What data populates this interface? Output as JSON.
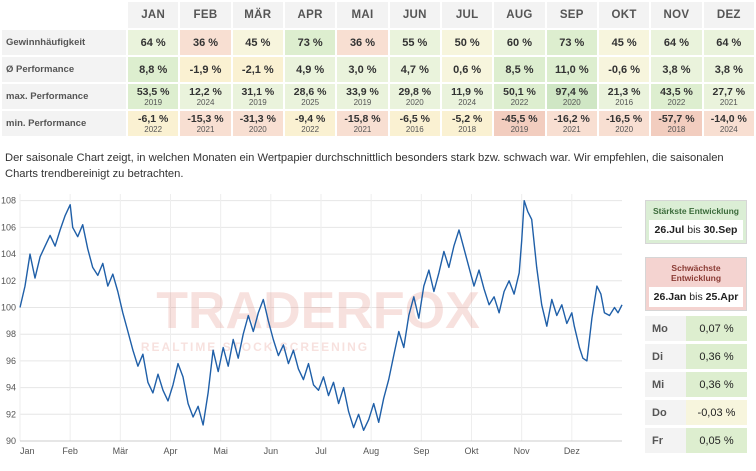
{
  "months": [
    "JAN",
    "FEB",
    "MÄR",
    "APR",
    "MAI",
    "JUN",
    "JUL",
    "AUG",
    "SEP",
    "OKT",
    "NOV",
    "DEZ"
  ],
  "rows": {
    "win": {
      "label": "Gewinnhäufigkeit",
      "values": [
        "64 %",
        "36 %",
        "45 %",
        "73 %",
        "36 %",
        "55 %",
        "50 %",
        "60 %",
        "73 %",
        "45 %",
        "64 %",
        "64 %"
      ],
      "colors": [
        "#eaf3dc",
        "#f8dfd2",
        "#f7f5dd",
        "#ddeecf",
        "#f8dfd2",
        "#eaf3dc",
        "#f7f5dd",
        "#eaf3dc",
        "#ddeecf",
        "#f7f5dd",
        "#eaf3dc",
        "#eaf3dc"
      ]
    },
    "avg": {
      "label": "Ø Performance",
      "values": [
        "8,8 %",
        "-1,9 %",
        "-2,1 %",
        "4,9 %",
        "3,0 %",
        "4,7 %",
        "0,6 %",
        "8,5 %",
        "11,0 %",
        "-0,6 %",
        "3,8 %",
        "3,8 %"
      ],
      "colors": [
        "#ddeecf",
        "#faf1d2",
        "#faf1d2",
        "#eaf3dc",
        "#eaf3dc",
        "#eaf3dc",
        "#f7f5dd",
        "#ddeecf",
        "#ddeecf",
        "#f7f5dd",
        "#eaf3dc",
        "#eaf3dc"
      ]
    },
    "max": {
      "label": "max. Performance",
      "values": [
        "53,5 %",
        "12,2 %",
        "31,1 %",
        "28,6 %",
        "33,9 %",
        "29,8 %",
        "11,9 %",
        "50,1 %",
        "97,4 %",
        "21,3 %",
        "43,5 %",
        "27,7 %"
      ],
      "years": [
        "2019",
        "2024",
        "2019",
        "2025",
        "2019",
        "2020",
        "2024",
        "2022",
        "2020",
        "2016",
        "2022",
        "2021"
      ],
      "colors": [
        "#ddeecf",
        "#eaf3dc",
        "#eaf3dc",
        "#eaf3dc",
        "#eaf3dc",
        "#eaf3dc",
        "#eaf3dc",
        "#ddeecf",
        "#cfe6c4",
        "#eaf3dc",
        "#ddeecf",
        "#eaf3dc"
      ]
    },
    "min": {
      "label": "min. Performance",
      "values": [
        "-6,1 %",
        "-15,3 %",
        "-31,3 %",
        "-9,4 %",
        "-15,8 %",
        "-6,5 %",
        "-5,2 %",
        "-45,5 %",
        "-16,2 %",
        "-16,5 %",
        "-57,7 %",
        "-14,0 %"
      ],
      "years": [
        "2022",
        "2021",
        "2020",
        "2022",
        "2021",
        "2016",
        "2018",
        "2019",
        "2021",
        "2020",
        "2018",
        "2024"
      ],
      "colors": [
        "#faf1d2",
        "#f8dfd2",
        "#f8dfd2",
        "#faf1d2",
        "#f8dfd2",
        "#faf1d2",
        "#faf1d2",
        "#f2cdbf",
        "#f8dfd2",
        "#f8dfd2",
        "#f2cdbf",
        "#f8dfd2"
      ]
    }
  },
  "description": "Der saisonale Chart zeigt, in welchen Monaten ein Wertpapier durchschnittlich besonders stark bzw. schwach war. Wir empfehlen, die saisonalen Charts trendbereinigt zu betrachten.",
  "best": {
    "title": "Stärkste Entwicklung",
    "from": "26.Jul",
    "sep": "bis",
    "to": "30.Sep"
  },
  "worst": {
    "title": "Schwächste Entwicklung",
    "from": "26.Jan",
    "sep": "bis",
    "to": "25.Apr"
  },
  "weekdays": [
    {
      "day": "Mo",
      "value": "0,07 %"
    },
    {
      "day": "Di",
      "value": "0,36 %"
    },
    {
      "day": "Mi",
      "value": "0,36 %"
    },
    {
      "day": "Do",
      "value": "-0,03 %"
    },
    {
      "day": "Fr",
      "value": "0,05 %"
    }
  ],
  "watermark": {
    "brand": "TRADERFOX",
    "tagline": "REALTIME STOCK SCREENING"
  },
  "chart_data": {
    "type": "line",
    "xlabel": "",
    "ylabel": "",
    "x_ticks": [
      "Jan",
      "Feb",
      "Mär",
      "Apr",
      "Mai",
      "Jun",
      "Jul",
      "Aug",
      "Sep",
      "Okt",
      "Nov",
      "Dez"
    ],
    "ylim": [
      90,
      108.5
    ],
    "y_ticks": [
      90,
      92,
      94,
      96,
      98,
      100,
      102,
      104,
      106,
      108
    ],
    "grid": true,
    "line_color": "#1f5fa8",
    "series": [
      {
        "values": [
          {
            "x": 0.0,
            "y": 100.0
          },
          {
            "x": 0.1,
            "y": 101.6
          },
          {
            "x": 0.2,
            "y": 104.0
          },
          {
            "x": 0.3,
            "y": 102.2
          },
          {
            "x": 0.4,
            "y": 103.8
          },
          {
            "x": 0.5,
            "y": 104.6
          },
          {
            "x": 0.6,
            "y": 105.4
          },
          {
            "x": 0.7,
            "y": 104.6
          },
          {
            "x": 0.8,
            "y": 105.8
          },
          {
            "x": 0.9,
            "y": 106.9
          },
          {
            "x": 1.0,
            "y": 107.7
          },
          {
            "x": 1.05,
            "y": 106.0
          },
          {
            "x": 1.15,
            "y": 105.3
          },
          {
            "x": 1.25,
            "y": 106.2
          },
          {
            "x": 1.35,
            "y": 104.4
          },
          {
            "x": 1.45,
            "y": 103.0
          },
          {
            "x": 1.55,
            "y": 102.4
          },
          {
            "x": 1.65,
            "y": 103.3
          },
          {
            "x": 1.75,
            "y": 101.6
          },
          {
            "x": 1.85,
            "y": 102.5
          },
          {
            "x": 1.95,
            "y": 101.2
          },
          {
            "x": 2.05,
            "y": 99.6
          },
          {
            "x": 2.15,
            "y": 98.2
          },
          {
            "x": 2.25,
            "y": 96.8
          },
          {
            "x": 2.35,
            "y": 95.6
          },
          {
            "x": 2.45,
            "y": 96.5
          },
          {
            "x": 2.55,
            "y": 94.4
          },
          {
            "x": 2.65,
            "y": 93.6
          },
          {
            "x": 2.75,
            "y": 95.0
          },
          {
            "x": 2.85,
            "y": 93.8
          },
          {
            "x": 2.95,
            "y": 93.0
          },
          {
            "x": 3.05,
            "y": 94.2
          },
          {
            "x": 3.15,
            "y": 95.8
          },
          {
            "x": 3.25,
            "y": 94.8
          },
          {
            "x": 3.35,
            "y": 92.8
          },
          {
            "x": 3.45,
            "y": 91.8
          },
          {
            "x": 3.55,
            "y": 92.6
          },
          {
            "x": 3.65,
            "y": 91.2
          },
          {
            "x": 3.75,
            "y": 93.6
          },
          {
            "x": 3.85,
            "y": 96.8
          },
          {
            "x": 3.95,
            "y": 95.2
          },
          {
            "x": 4.05,
            "y": 97.0
          },
          {
            "x": 4.15,
            "y": 95.6
          },
          {
            "x": 4.25,
            "y": 97.6
          },
          {
            "x": 4.35,
            "y": 96.2
          },
          {
            "x": 4.45,
            "y": 98.0
          },
          {
            "x": 4.55,
            "y": 99.4
          },
          {
            "x": 4.65,
            "y": 98.2
          },
          {
            "x": 4.75,
            "y": 99.6
          },
          {
            "x": 4.85,
            "y": 100.6
          },
          {
            "x": 4.95,
            "y": 99.0
          },
          {
            "x": 5.05,
            "y": 97.6
          },
          {
            "x": 5.15,
            "y": 96.4
          },
          {
            "x": 5.25,
            "y": 97.2
          },
          {
            "x": 5.35,
            "y": 95.8
          },
          {
            "x": 5.45,
            "y": 96.8
          },
          {
            "x": 5.55,
            "y": 95.4
          },
          {
            "x": 5.65,
            "y": 94.6
          },
          {
            "x": 5.75,
            "y": 95.8
          },
          {
            "x": 5.85,
            "y": 94.2
          },
          {
            "x": 5.95,
            "y": 93.8
          },
          {
            "x": 6.05,
            "y": 94.8
          },
          {
            "x": 6.15,
            "y": 93.4
          },
          {
            "x": 6.25,
            "y": 94.4
          },
          {
            "x": 6.35,
            "y": 92.8
          },
          {
            "x": 6.45,
            "y": 94.0
          },
          {
            "x": 6.55,
            "y": 92.2
          },
          {
            "x": 6.65,
            "y": 91.0
          },
          {
            "x": 6.75,
            "y": 92.0
          },
          {
            "x": 6.85,
            "y": 90.8
          },
          {
            "x": 6.95,
            "y": 91.6
          },
          {
            "x": 7.05,
            "y": 92.8
          },
          {
            "x": 7.15,
            "y": 91.4
          },
          {
            "x": 7.25,
            "y": 93.2
          },
          {
            "x": 7.35,
            "y": 94.6
          },
          {
            "x": 7.45,
            "y": 96.4
          },
          {
            "x": 7.55,
            "y": 98.2
          },
          {
            "x": 7.65,
            "y": 97.0
          },
          {
            "x": 7.75,
            "y": 99.4
          },
          {
            "x": 7.85,
            "y": 100.8
          },
          {
            "x": 7.95,
            "y": 99.2
          },
          {
            "x": 8.05,
            "y": 101.6
          },
          {
            "x": 8.15,
            "y": 102.8
          },
          {
            "x": 8.25,
            "y": 101.2
          },
          {
            "x": 8.35,
            "y": 102.6
          },
          {
            "x": 8.45,
            "y": 104.2
          },
          {
            "x": 8.55,
            "y": 103.0
          },
          {
            "x": 8.65,
            "y": 104.6
          },
          {
            "x": 8.75,
            "y": 105.8
          },
          {
            "x": 8.85,
            "y": 104.4
          },
          {
            "x": 8.95,
            "y": 103.0
          },
          {
            "x": 9.05,
            "y": 101.6
          },
          {
            "x": 9.15,
            "y": 102.8
          },
          {
            "x": 9.25,
            "y": 101.4
          },
          {
            "x": 9.35,
            "y": 100.2
          },
          {
            "x": 9.45,
            "y": 100.8
          },
          {
            "x": 9.55,
            "y": 99.6
          },
          {
            "x": 9.65,
            "y": 101.2
          },
          {
            "x": 9.75,
            "y": 102.0
          },
          {
            "x": 9.85,
            "y": 101.0
          },
          {
            "x": 9.95,
            "y": 102.6
          },
          {
            "x": 10.0,
            "y": 105.0
          },
          {
            "x": 10.05,
            "y": 108.0
          },
          {
            "x": 10.12,
            "y": 107.2
          },
          {
            "x": 10.2,
            "y": 106.6
          },
          {
            "x": 10.3,
            "y": 103.0
          },
          {
            "x": 10.4,
            "y": 100.2
          },
          {
            "x": 10.5,
            "y": 98.6
          },
          {
            "x": 10.6,
            "y": 100.6
          },
          {
            "x": 10.7,
            "y": 99.4
          },
          {
            "x": 10.8,
            "y": 100.2
          },
          {
            "x": 10.9,
            "y": 98.8
          },
          {
            "x": 11.0,
            "y": 99.6
          },
          {
            "x": 11.05,
            "y": 98.6
          },
          {
            "x": 11.15,
            "y": 97.0
          },
          {
            "x": 11.22,
            "y": 96.2
          },
          {
            "x": 11.3,
            "y": 96.0
          },
          {
            "x": 11.4,
            "y": 99.2
          },
          {
            "x": 11.5,
            "y": 101.6
          },
          {
            "x": 11.58,
            "y": 101.0
          },
          {
            "x": 11.65,
            "y": 99.6
          },
          {
            "x": 11.75,
            "y": 99.4
          },
          {
            "x": 11.85,
            "y": 100.0
          },
          {
            "x": 11.92,
            "y": 99.6
          },
          {
            "x": 12.0,
            "y": 100.2
          }
        ]
      }
    ]
  }
}
